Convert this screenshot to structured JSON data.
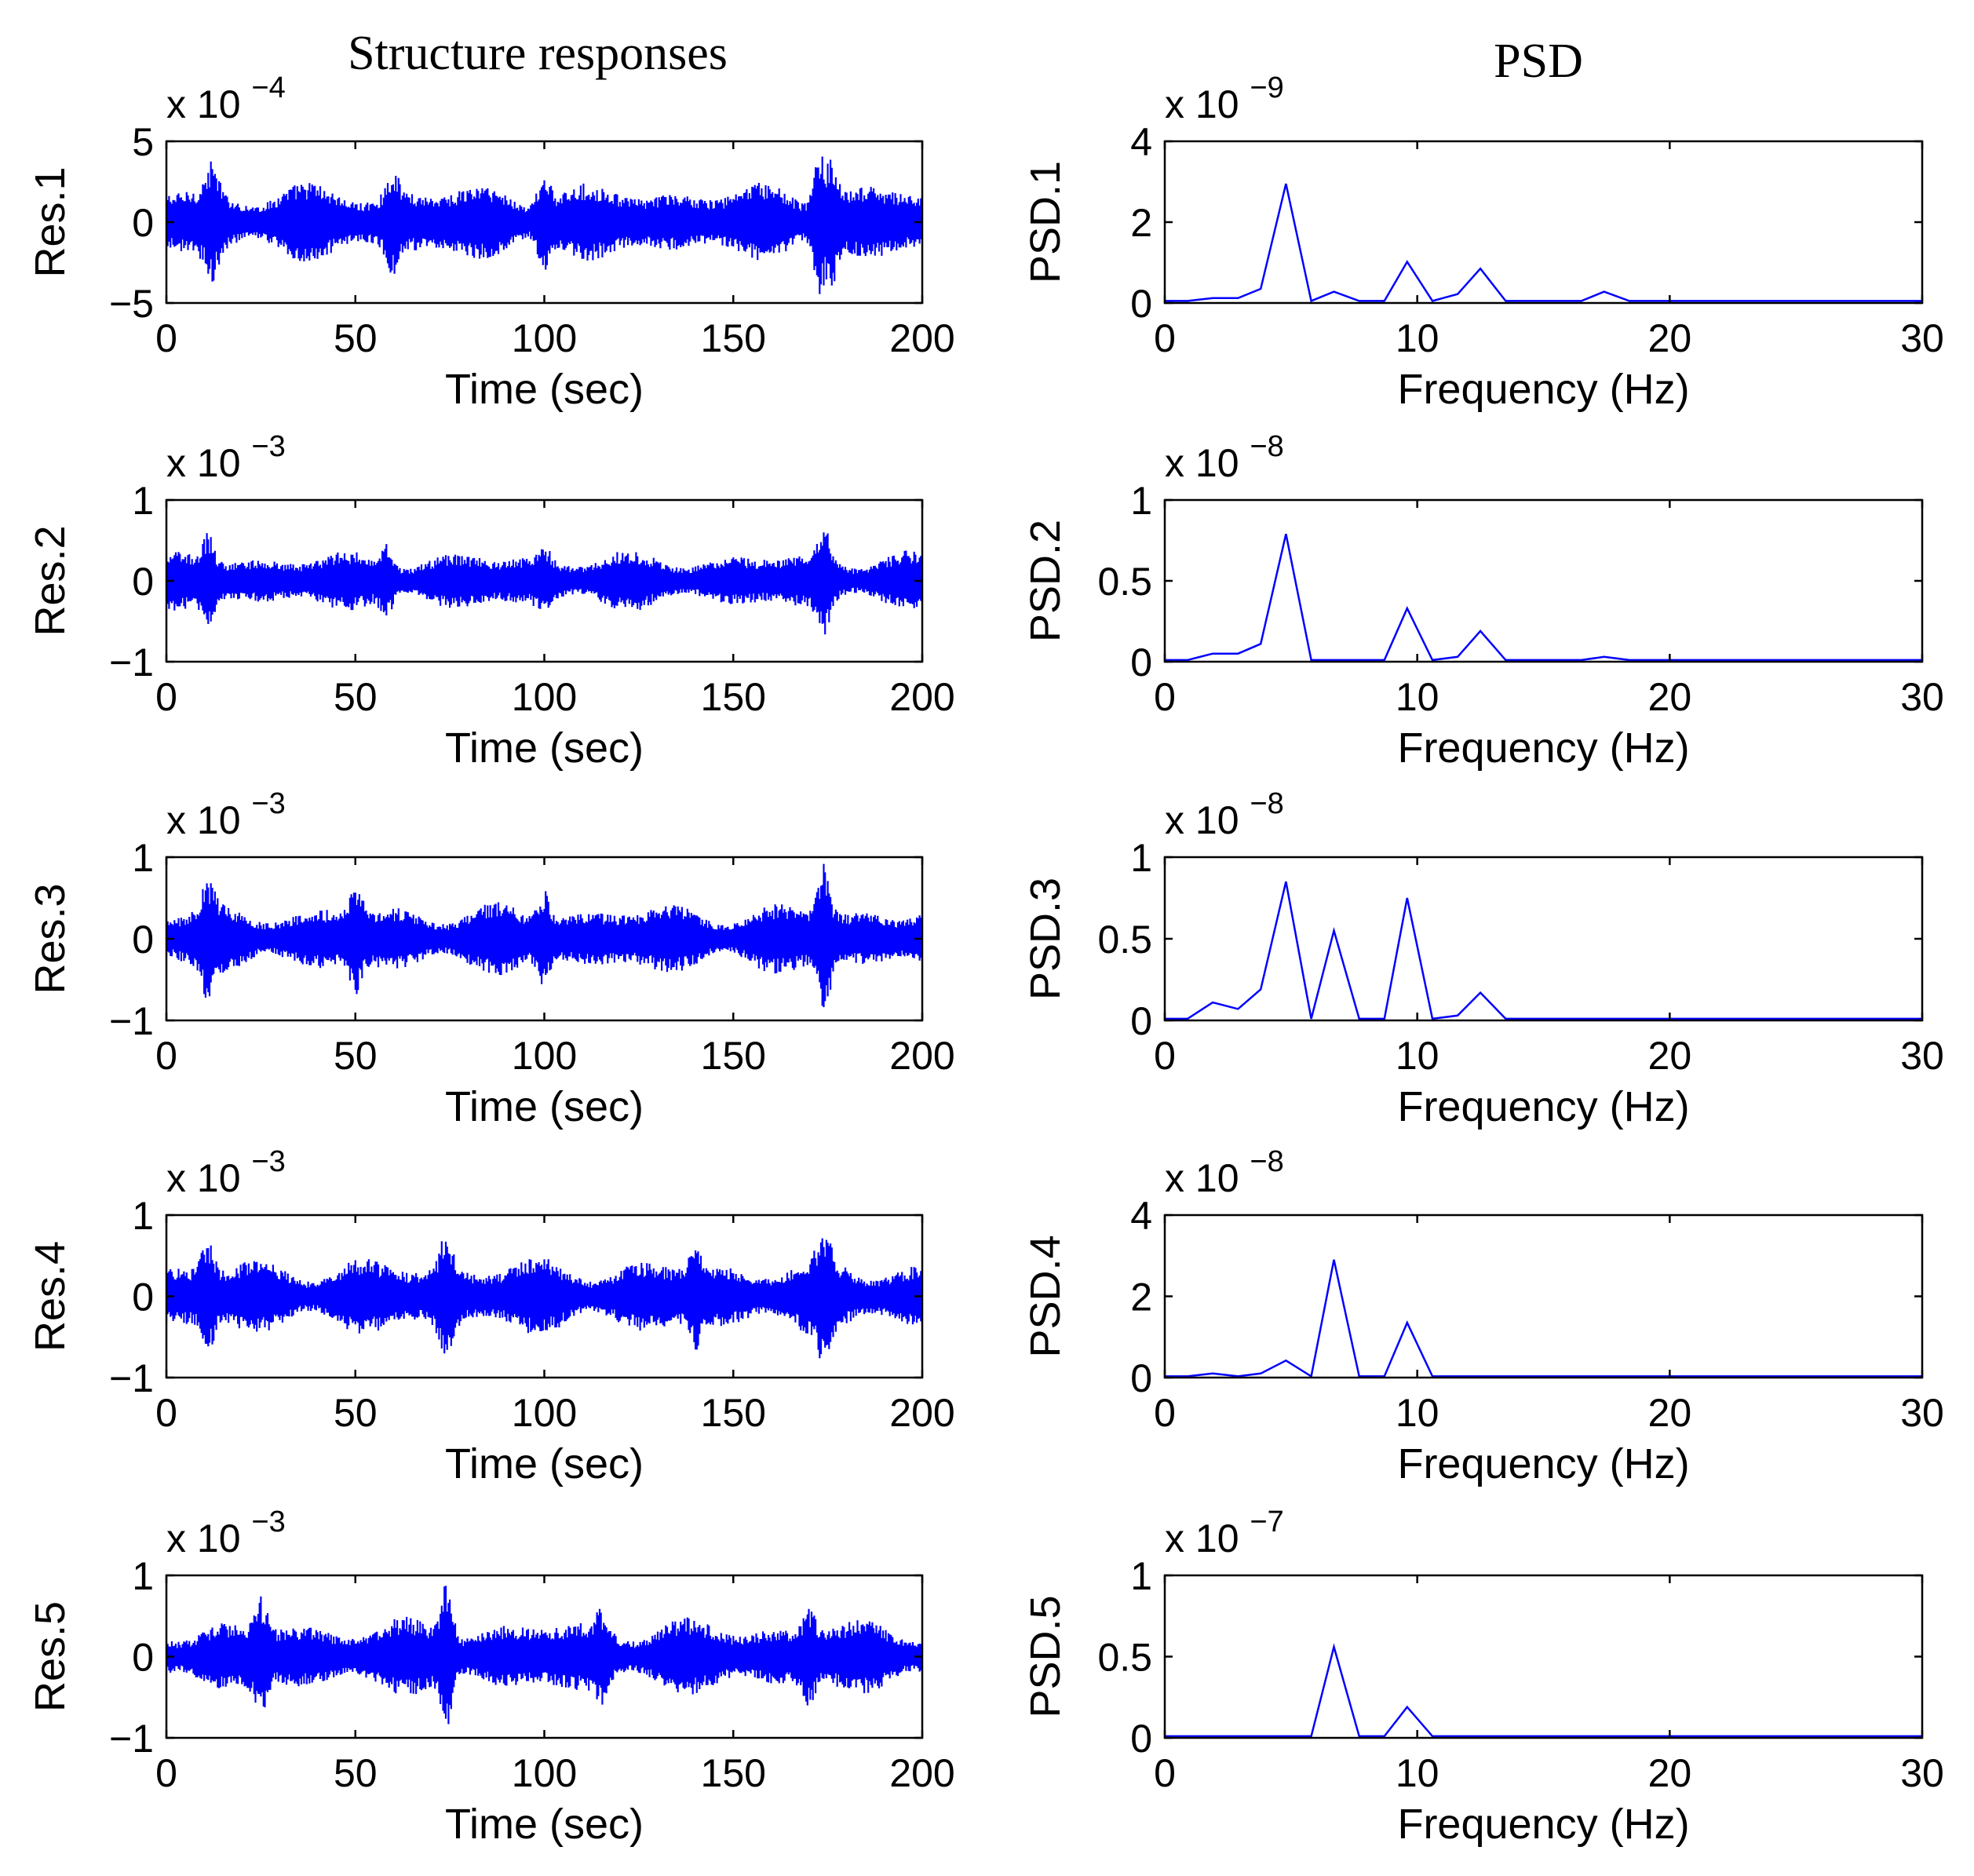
{
  "titles": {
    "left": "Structure responses",
    "right": "PSD"
  },
  "chart_data": [
    {
      "panel": "res1",
      "type": "line",
      "title": "",
      "xlabel": "Time (sec)",
      "ylabel": "Res.1",
      "multiplier": "x 10",
      "exponent": "−4",
      "xlim": [
        0,
        200
      ],
      "ylim": [
        -5,
        5
      ],
      "xticks": [
        0,
        50,
        100,
        150,
        200
      ],
      "yticks": [
        -5,
        0,
        5
      ],
      "ytick_labels": [
        "−5",
        "0",
        "5"
      ],
      "amplitude": 2.3,
      "bursts": [
        [
          12,
          3.8
        ],
        [
          60,
          3.3
        ],
        [
          100,
          3.2
        ],
        [
          173,
          4.5
        ],
        [
          176,
          4.0
        ]
      ]
    },
    {
      "panel": "res2",
      "type": "line",
      "title": "",
      "xlabel": "Time (sec)",
      "ylabel": "Res.2",
      "multiplier": "x 10",
      "exponent": "−3",
      "xlim": [
        0,
        200
      ],
      "ylim": [
        -1,
        1
      ],
      "xticks": [
        0,
        50,
        100,
        150,
        200
      ],
      "yticks": [
        -1,
        0,
        1
      ],
      "ytick_labels": [
        "−1",
        "0",
        "1"
      ],
      "amplitude": 0.35,
      "bursts": [
        [
          11,
          0.6
        ],
        [
          58,
          0.5
        ],
        [
          100,
          0.45
        ],
        [
          174,
          0.72
        ]
      ]
    },
    {
      "panel": "res3",
      "type": "line",
      "title": "",
      "xlabel": "Time (sec)",
      "ylabel": "Res.3",
      "multiplier": "x 10",
      "exponent": "−3",
      "xlim": [
        0,
        200
      ],
      "ylim": [
        -1,
        1
      ],
      "xticks": [
        0,
        50,
        100,
        150,
        200
      ],
      "yticks": [
        -1,
        0,
        1
      ],
      "ytick_labels": [
        "−1",
        "0",
        "1"
      ],
      "amplitude": 0.42,
      "bursts": [
        [
          11,
          0.75
        ],
        [
          50,
          0.7
        ],
        [
          100,
          0.6
        ],
        [
          174,
          0.92
        ]
      ]
    },
    {
      "panel": "res4",
      "type": "line",
      "title": "",
      "xlabel": "Time (sec)",
      "ylabel": "Res.4",
      "multiplier": "x 10",
      "exponent": "−3",
      "xlim": [
        0,
        200
      ],
      "ylim": [
        -1,
        1
      ],
      "xticks": [
        0,
        50,
        100,
        150,
        200
      ],
      "yticks": [
        -1,
        0,
        1
      ],
      "ytick_labels": [
        "−1",
        "0",
        "1"
      ],
      "amplitude": 0.45,
      "bursts": [
        [
          11,
          0.72
        ],
        [
          74,
          0.82
        ],
        [
          140,
          0.68
        ],
        [
          174,
          0.85
        ]
      ]
    },
    {
      "panel": "res5",
      "type": "line",
      "title": "",
      "xlabel": "Time (sec)",
      "ylabel": "Res.5",
      "multiplier": "x 10",
      "exponent": "−3",
      "xlim": [
        0,
        200
      ],
      "ylim": [
        -1,
        1
      ],
      "xticks": [
        0,
        50,
        100,
        150,
        200
      ],
      "yticks": [
        -1,
        0,
        1
      ],
      "ytick_labels": [
        "−1",
        "0",
        "1"
      ],
      "amplitude": 0.45,
      "bursts": [
        [
          25,
          0.75
        ],
        [
          74,
          0.9
        ],
        [
          115,
          0.6
        ],
        [
          170,
          0.62
        ]
      ]
    },
    {
      "panel": "psd1",
      "type": "line",
      "title": "",
      "xlabel": "Frequency (Hz)",
      "ylabel": "PSD.1",
      "multiplier": "x 10",
      "exponent": "−9",
      "xlim": [
        0,
        30
      ],
      "ylim": [
        0,
        4
      ],
      "xticks": [
        0,
        10,
        20,
        30
      ],
      "yticks": [
        0,
        2,
        4
      ],
      "ytick_labels": [
        "0",
        "2",
        "4"
      ],
      "x": [
        0,
        0.9,
        1.9,
        2.9,
        3.8,
        4.8,
        5.8,
        6.7,
        7.7,
        8.7,
        9.6,
        10.6,
        11.6,
        12.5,
        13.5,
        14.5,
        16.5,
        17.4,
        18.4,
        30
      ],
      "y": [
        0.05,
        0.05,
        0.12,
        0.12,
        0.35,
        2.95,
        0.05,
        0.28,
        0.05,
        0.05,
        1.02,
        0.05,
        0.22,
        0.85,
        0.05,
        0.05,
        0.05,
        0.28,
        0.05,
        0.05
      ]
    },
    {
      "panel": "psd2",
      "type": "line",
      "title": "",
      "xlabel": "Frequency (Hz)",
      "ylabel": "PSD.2",
      "multiplier": "x 10",
      "exponent": "−8",
      "xlim": [
        0,
        30
      ],
      "ylim": [
        0,
        1
      ],
      "xticks": [
        0,
        10,
        20,
        30
      ],
      "yticks": [
        0,
        0.5,
        1
      ],
      "ytick_labels": [
        "0",
        "0.5",
        "1"
      ],
      "x": [
        0,
        0.9,
        1.9,
        2.9,
        3.8,
        4.8,
        5.8,
        6.7,
        7.7,
        8.7,
        9.6,
        10.6,
        11.6,
        12.5,
        13.5,
        14.5,
        16.5,
        17.4,
        18.4,
        30
      ],
      "y": [
        0.01,
        0.01,
        0.05,
        0.05,
        0.11,
        0.79,
        0.01,
        0.01,
        0.01,
        0.01,
        0.33,
        0.01,
        0.03,
        0.19,
        0.01,
        0.01,
        0.01,
        0.03,
        0.01,
        0.01
      ]
    },
    {
      "panel": "psd3",
      "type": "line",
      "title": "",
      "xlabel": "Frequency (Hz)",
      "ylabel": "PSD.3",
      "multiplier": "x 10",
      "exponent": "−8",
      "xlim": [
        0,
        30
      ],
      "ylim": [
        0,
        1
      ],
      "xticks": [
        0,
        10,
        20,
        30
      ],
      "yticks": [
        0,
        0.5,
        1
      ],
      "ytick_labels": [
        "0",
        "0.5",
        "1"
      ],
      "x": [
        0,
        0.9,
        1.9,
        2.9,
        3.8,
        4.8,
        5.8,
        6.7,
        7.7,
        8.7,
        9.6,
        10.6,
        11.6,
        12.5,
        13.5,
        30
      ],
      "y": [
        0.01,
        0.01,
        0.11,
        0.07,
        0.19,
        0.85,
        0.01,
        0.55,
        0.01,
        0.01,
        0.75,
        0.01,
        0.03,
        0.17,
        0.01,
        0.01
      ]
    },
    {
      "panel": "psd4",
      "type": "line",
      "title": "",
      "xlabel": "Frequency (Hz)",
      "ylabel": "PSD.4",
      "multiplier": "x 10",
      "exponent": "−8",
      "xlim": [
        0,
        30
      ],
      "ylim": [
        0,
        4
      ],
      "xticks": [
        0,
        10,
        20,
        30
      ],
      "yticks": [
        0,
        2,
        4
      ],
      "ytick_labels": [
        "0",
        "2",
        "4"
      ],
      "x": [
        0,
        0.9,
        1.9,
        2.9,
        3.8,
        4.8,
        5.8,
        6.7,
        7.7,
        8.7,
        9.6,
        10.6,
        30
      ],
      "y": [
        0.03,
        0.03,
        0.1,
        0.03,
        0.1,
        0.42,
        0.03,
        2.9,
        0.03,
        0.03,
        1.35,
        0.03,
        0.03
      ]
    },
    {
      "panel": "psd5",
      "type": "line",
      "title": "",
      "xlabel": "Frequency (Hz)",
      "ylabel": "PSD.5",
      "multiplier": "x 10",
      "exponent": "−7",
      "xlim": [
        0,
        30
      ],
      "ylim": [
        0,
        1
      ],
      "xticks": [
        0,
        10,
        20,
        30
      ],
      "yticks": [
        0,
        0.5,
        1
      ],
      "ytick_labels": [
        "0",
        "0.5",
        "1"
      ],
      "x": [
        0,
        5.8,
        6.7,
        7.7,
        8.7,
        9.6,
        10.6,
        30
      ],
      "y": [
        0.01,
        0.01,
        0.56,
        0.01,
        0.01,
        0.19,
        0.01,
        0.01
      ]
    }
  ]
}
